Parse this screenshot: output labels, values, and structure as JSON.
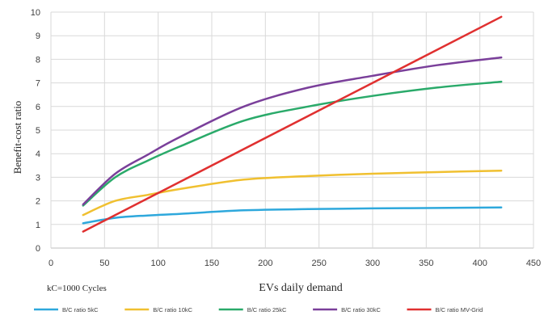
{
  "chart_data": {
    "type": "line",
    "title": "",
    "xlabel": "EVs daily demand",
    "ylabel": "Benefit-cost ratio",
    "note": "kC=1000 Cycles",
    "xlim": [
      0,
      450
    ],
    "ylim": [
      0,
      10
    ],
    "x_ticks": [
      "0",
      "50",
      "100",
      "150",
      "200",
      "250",
      "300",
      "350",
      "400",
      "450"
    ],
    "y_ticks": [
      "0",
      "1",
      "2",
      "3",
      "4",
      "5",
      "6",
      "7",
      "8",
      "9",
      "10"
    ],
    "grid": true,
    "legend_position": "bottom",
    "series": [
      {
        "name": "B/C ratio 5kC",
        "color": "#2ea8dc",
        "points": [
          [
            30,
            1.05
          ],
          [
            60,
            1.28
          ],
          [
            90,
            1.38
          ],
          [
            120,
            1.45
          ],
          [
            180,
            1.6
          ],
          [
            240,
            1.65
          ],
          [
            300,
            1.68
          ],
          [
            360,
            1.7
          ],
          [
            420,
            1.72
          ]
        ]
      },
      {
        "name": "B/C ratio 10kC",
        "color": "#f0c030",
        "points": [
          [
            30,
            1.4
          ],
          [
            60,
            2.0
          ],
          [
            90,
            2.25
          ],
          [
            120,
            2.5
          ],
          [
            180,
            2.9
          ],
          [
            240,
            3.05
          ],
          [
            300,
            3.15
          ],
          [
            360,
            3.22
          ],
          [
            420,
            3.28
          ]
        ]
      },
      {
        "name": "B/C ratio 25kC",
        "color": "#2aaa6a",
        "points": [
          [
            30,
            1.8
          ],
          [
            60,
            3.0
          ],
          [
            90,
            3.7
          ],
          [
            120,
            4.3
          ],
          [
            180,
            5.4
          ],
          [
            240,
            6.0
          ],
          [
            300,
            6.45
          ],
          [
            360,
            6.8
          ],
          [
            420,
            7.05
          ]
        ]
      },
      {
        "name": "B/C ratio 30kC",
        "color": "#7a3f9a",
        "points": [
          [
            30,
            1.85
          ],
          [
            60,
            3.15
          ],
          [
            90,
            3.95
          ],
          [
            120,
            4.7
          ],
          [
            180,
            6.0
          ],
          [
            240,
            6.8
          ],
          [
            300,
            7.3
          ],
          [
            360,
            7.75
          ],
          [
            420,
            8.08
          ]
        ]
      },
      {
        "name": "B/C ratio MV-Grid",
        "color": "#e03030",
        "points": [
          [
            30,
            0.7
          ],
          [
            420,
            9.8
          ]
        ]
      }
    ]
  }
}
